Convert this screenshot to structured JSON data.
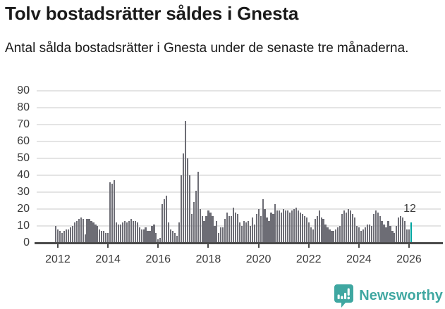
{
  "header": {
    "title": "Tolv bostadsrätter såldes i Gnesta",
    "subtitle": "Antal sålda bostadsrätter i Gnesta under de senaste tre månaderna."
  },
  "chart_data": {
    "type": "bar",
    "title": "Tolv bostadsrätter såldes i Gnesta",
    "subtitle": "Antal sålda bostadsrätter i Gnesta under de senaste tre månaderna.",
    "frequency": "monthly",
    "x_start_period": "2011-12",
    "x_end_period": "2026-02",
    "ylim": [
      0,
      92
    ],
    "grid": true,
    "y_ticks": [
      0,
      10,
      20,
      30,
      40,
      50,
      60,
      70,
      80,
      90
    ],
    "x_ticks": [
      {
        "label": "2012",
        "index": 1
      },
      {
        "label": "2014",
        "index": 25
      },
      {
        "label": "2016",
        "index": 49
      },
      {
        "label": "2018",
        "index": 73
      },
      {
        "label": "2020",
        "index": 97
      },
      {
        "label": "2022",
        "index": 121
      },
      {
        "label": "2024",
        "index": 145
      },
      {
        "label": "2026",
        "index": 169
      }
    ],
    "values": [
      10,
      8,
      7,
      6,
      7,
      8,
      8,
      9,
      10,
      12,
      13,
      14,
      15,
      14,
      5,
      14,
      14,
      13,
      12,
      11,
      10,
      8,
      7,
      7,
      6,
      6,
      36,
      35,
      37,
      12,
      11,
      11,
      12,
      13,
      12,
      13,
      14,
      13,
      13,
      12,
      9,
      8,
      8,
      9,
      7,
      7,
      10,
      11,
      6,
      2,
      3,
      23,
      26,
      28,
      12,
      8,
      7,
      6,
      4,
      12,
      40,
      53,
      72,
      50,
      40,
      17,
      24,
      31,
      42,
      20,
      16,
      13,
      16,
      19,
      18,
      16,
      10,
      13,
      6,
      9,
      9,
      14,
      18,
      16,
      16,
      21,
      18,
      17,
      12,
      10,
      13,
      12,
      13,
      10,
      15,
      11,
      17,
      20,
      16,
      26,
      20,
      15,
      13,
      18,
      17,
      23,
      19,
      19,
      18,
      20,
      19,
      19,
      18,
      19,
      20,
      21,
      19,
      18,
      17,
      16,
      15,
      12,
      9,
      8,
      14,
      16,
      19,
      15,
      14,
      11,
      9,
      8,
      7,
      7,
      8,
      9,
      10,
      17,
      19,
      18,
      20,
      19,
      17,
      15,
      10,
      9,
      7,
      8,
      9,
      11,
      11,
      10,
      17,
      19,
      18,
      16,
      13,
      11,
      9,
      13,
      10,
      7,
      6,
      10,
      15,
      16,
      15,
      13,
      8,
      8,
      12
    ],
    "highlight": {
      "index": 170,
      "value": 12,
      "label": "12"
    },
    "colors": {
      "bar": "#6d6d75",
      "highlight_bar": "#00a5a0",
      "axis": "#4b4b4b",
      "gridline": "#e4e4e4",
      "tick_text": "#3b3b3b",
      "title_text": "#1a1a1a",
      "brand": "#3fa7a1"
    }
  },
  "footer": {
    "brand_name": "Newsworthy"
  }
}
